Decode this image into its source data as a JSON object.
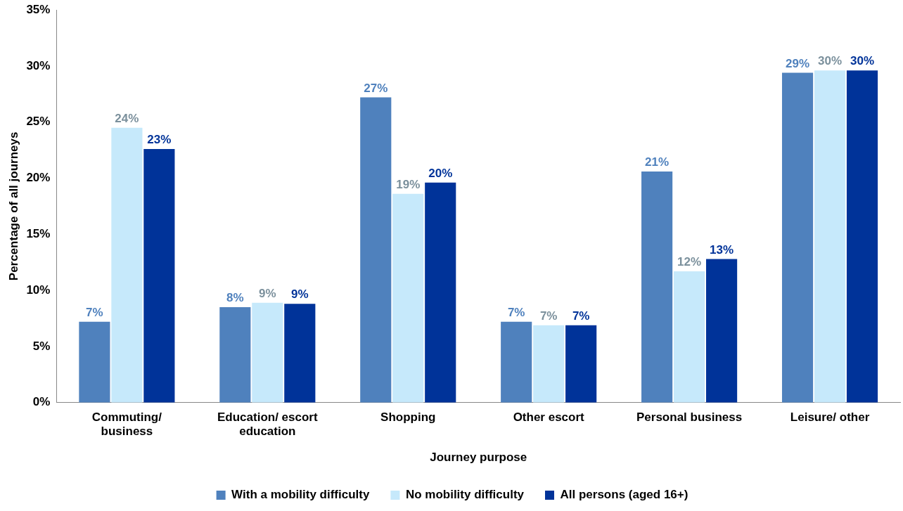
{
  "chart_data": {
    "type": "bar",
    "xlabel": "Journey purpose",
    "ylabel": "Percentage of all journeys",
    "categories": [
      "Commuting/ business",
      "Education/ escort education",
      "Shopping",
      "Other escort",
      "Personal business",
      "Leisure/ other"
    ],
    "series": [
      {
        "name": "With a mobility difficulty",
        "color": "#4f81bd",
        "values": [
          7.2,
          8.5,
          27.2,
          7.2,
          20.6,
          29.4
        ],
        "value_labels": [
          "7%",
          "8%",
          "27%",
          "7%",
          "21%",
          "29%"
        ]
      },
      {
        "name": "No mobility difficulty",
        "color": "#c6e9fb",
        "values": [
          24.5,
          8.9,
          18.6,
          6.9,
          11.7,
          29.6
        ],
        "value_labels": [
          "24%",
          "9%",
          "19%",
          "7%",
          "12%",
          "30%"
        ]
      },
      {
        "name": "All persons (aged 16+)",
        "color": "#003399",
        "values": [
          22.6,
          8.8,
          19.6,
          6.9,
          12.8,
          29.6
        ],
        "value_labels": [
          "23%",
          "9%",
          "20%",
          "7%",
          "13%",
          "30%"
        ]
      }
    ],
    "ylim": [
      0,
      35
    ],
    "yticks": [
      {
        "value": 0,
        "label": "0%"
      },
      {
        "value": 5,
        "label": "5%"
      },
      {
        "value": 10,
        "label": "10%"
      },
      {
        "value": 15,
        "label": "15%"
      },
      {
        "value": 20,
        "label": "20%"
      },
      {
        "value": 25,
        "label": "25%"
      },
      {
        "value": 30,
        "label": "30%"
      },
      {
        "value": 35,
        "label": "35%"
      }
    ],
    "grid": false,
    "legend": "bottom"
  }
}
